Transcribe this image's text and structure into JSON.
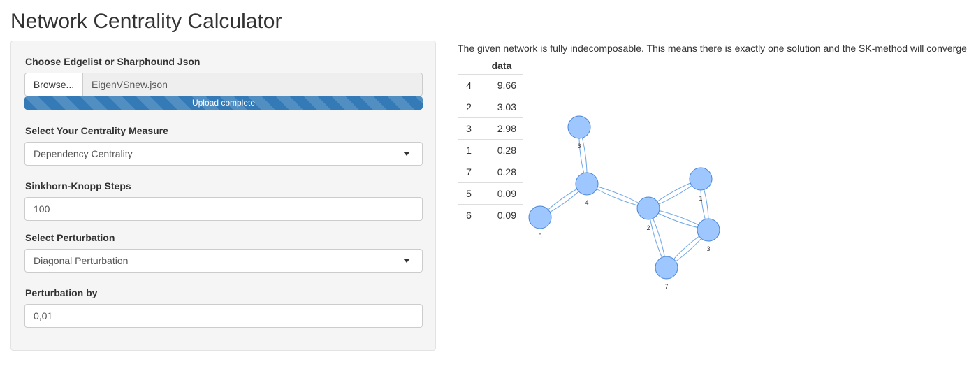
{
  "app": {
    "title": "Network Centrality Calculator"
  },
  "sidebar": {
    "file_input": {
      "label": "Choose Edgelist or Sharphound Json",
      "browse_label": "Browse...",
      "file_name": "EigenVSnew.json",
      "progress_text": "Upload complete",
      "progress_fraction": 1.0
    },
    "centrality": {
      "label": "Select Your Centrality Measure",
      "selected": "Dependency Centrality"
    },
    "sk_steps": {
      "label": "Sinkhorn-Knopp Steps",
      "value": "100"
    },
    "perturbation": {
      "label": "Select Perturbation",
      "selected": "Diagonal Perturbation"
    },
    "perturbation_by": {
      "label": "Perturbation by",
      "value": "0,01"
    }
  },
  "main": {
    "message": "The given network is fully indecomposable. This means there is exactly one solution and the SK-method will converge",
    "table": {
      "header": "data",
      "rows": [
        {
          "id": "4",
          "value": "9.66"
        },
        {
          "id": "2",
          "value": "3.03"
        },
        {
          "id": "3",
          "value": "2.98"
        },
        {
          "id": "1",
          "value": "0.28"
        },
        {
          "id": "7",
          "value": "0.28"
        },
        {
          "id": "5",
          "value": "0.09"
        },
        {
          "id": "6",
          "value": "0.09"
        }
      ]
    },
    "graph": {
      "node_color": "#9ec7ff",
      "edge_color": "#6fa6e8",
      "nodes": [
        "6",
        "4",
        "5",
        "2",
        "1",
        "3",
        "7"
      ]
    }
  }
}
